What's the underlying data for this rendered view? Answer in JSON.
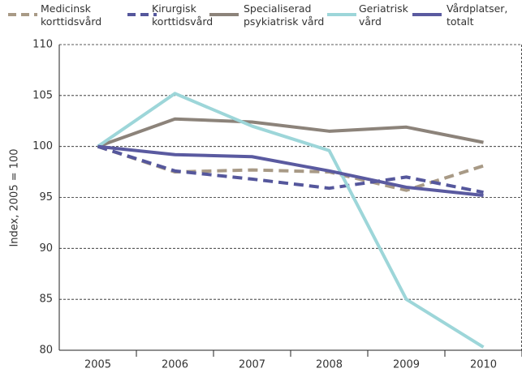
{
  "chart_data": {
    "type": "line",
    "y_label": "Index, 2005 = 100",
    "categories": [
      "2005",
      "2006",
      "2007",
      "2008",
      "2009",
      "2010"
    ],
    "series": [
      {
        "name": "Medicinsk korttidsvård",
        "color": "#a89a86",
        "dashed": true,
        "values": [
          100,
          97.5,
          97.7,
          97.5,
          95.7,
          98.1
        ]
      },
      {
        "name": "Kirurgisk korttidsvård",
        "color": "#55579c",
        "dashed": true,
        "values": [
          100,
          97.6,
          96.8,
          95.9,
          97.0,
          95.5
        ]
      },
      {
        "name": "Specialiserad psykiatrisk vård",
        "color": "#8c837a",
        "dashed": false,
        "values": [
          100,
          102.7,
          102.4,
          101.5,
          101.9,
          100.4
        ]
      },
      {
        "name": "Geriatrisk vård",
        "color": "#9dd6d9",
        "dashed": false,
        "values": [
          100,
          105.2,
          102.0,
          99.6,
          85.0,
          80.3
        ]
      },
      {
        "name": "Vårdplatser, totalt",
        "color": "#5a5aa0",
        "dashed": false,
        "values": [
          100,
          99.2,
          99.0,
          97.6,
          96.0,
          95.2
        ]
      }
    ],
    "ylim": [
      80,
      110
    ],
    "yticks": [
      80,
      85,
      90,
      95,
      100,
      105,
      110
    ],
    "grid": true
  }
}
